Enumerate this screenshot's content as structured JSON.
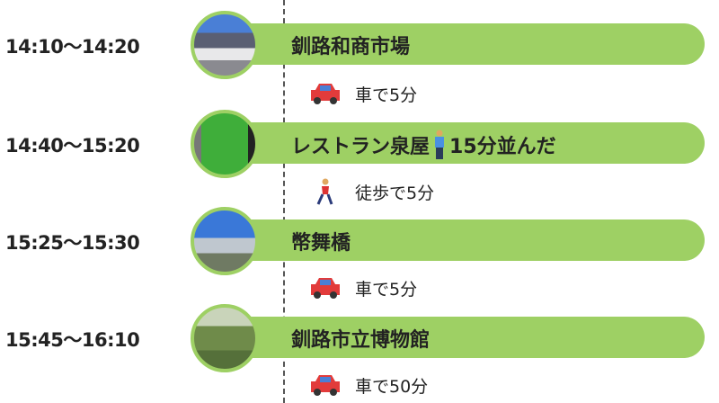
{
  "stops": [
    {
      "time": "14:10〜14:20",
      "name": "釧路和商市場",
      "extra": ""
    },
    {
      "time": "14:40〜15:20",
      "name": "レストラン泉屋",
      "extra": "15分並んだ",
      "extra_icon": "standing-person-icon"
    },
    {
      "time": "15:25〜15:30",
      "name": "幣舞橋",
      "extra": ""
    },
    {
      "time": "15:45〜16:10",
      "name": "釧路市立博物館",
      "extra": ""
    }
  ],
  "moves": [
    {
      "icon": "car-icon",
      "label": "車で5分"
    },
    {
      "icon": "walking-person-icon",
      "label": "徒歩で5分"
    },
    {
      "icon": "car-icon",
      "label": "車で5分"
    },
    {
      "icon": "car-icon",
      "label": "車で50分"
    }
  ],
  "colors": {
    "bar": "#9ed064",
    "line": "#555555"
  }
}
